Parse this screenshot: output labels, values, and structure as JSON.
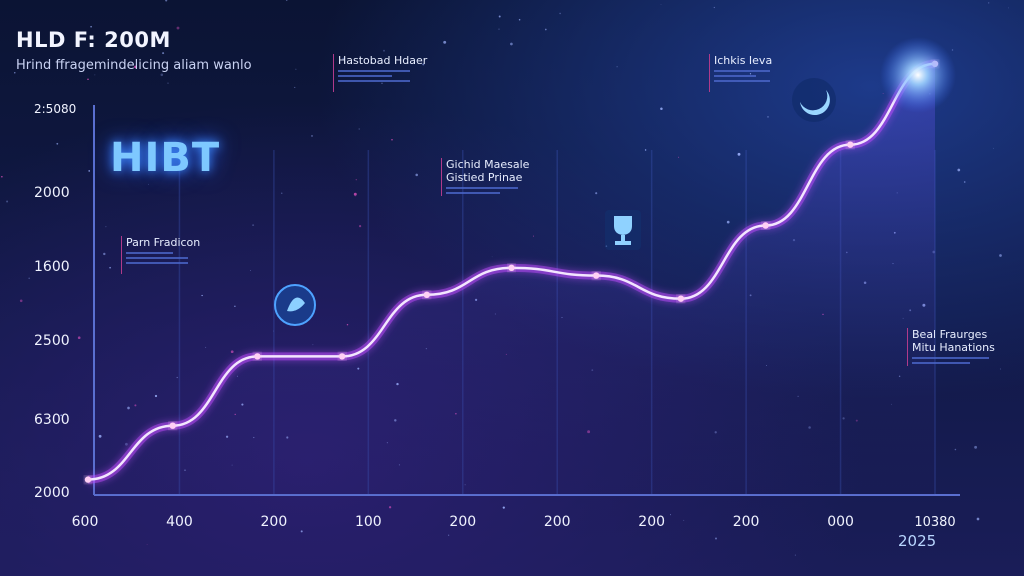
{
  "header": {
    "title": "HLD F: 200M",
    "subtitle": "Hrind ffragemindelicing aliam wanlo"
  },
  "brand": "HIBT",
  "callouts": [
    {
      "id": "c1",
      "lines": [
        "Hastobad Hdaer"
      ]
    },
    {
      "id": "c2",
      "lines": [
        "Ichkis Ieva"
      ]
    },
    {
      "id": "c3",
      "lines": [
        "Gichid Maesale",
        "Gistied Prinae"
      ]
    },
    {
      "id": "c4",
      "lines": [
        "Parn Fradicon"
      ]
    },
    {
      "id": "c5",
      "lines": [
        "Beal Fraurges",
        "Mitu Hanations"
      ]
    }
  ],
  "year_label": "2025",
  "colors": {
    "line": "#e8c8ff",
    "glow": "#c04dff",
    "accent": "#7ec8ff",
    "star": "#ff5ad0"
  },
  "chart_data": {
    "type": "line",
    "title": "HLD F: 200M",
    "subtitle": "Hrind ffragemindelicing aliam wanlo",
    "y_tick_labels": [
      "2000",
      "6300",
      "2500",
      "1600",
      "2000",
      "2:5080"
    ],
    "x_tick_labels": [
      "600",
      "400",
      "200",
      "100",
      "200",
      "200",
      "200",
      "200",
      "000",
      "10380"
    ],
    "y_index_range": [
      0,
      5
    ],
    "series": [
      {
        "values": [
          0.2,
          0.9,
          1.8,
          1.8,
          2.6,
          2.95,
          2.85,
          2.55,
          3.5,
          4.55,
          5.6
        ]
      }
    ],
    "grid": true,
    "legend": "none"
  }
}
